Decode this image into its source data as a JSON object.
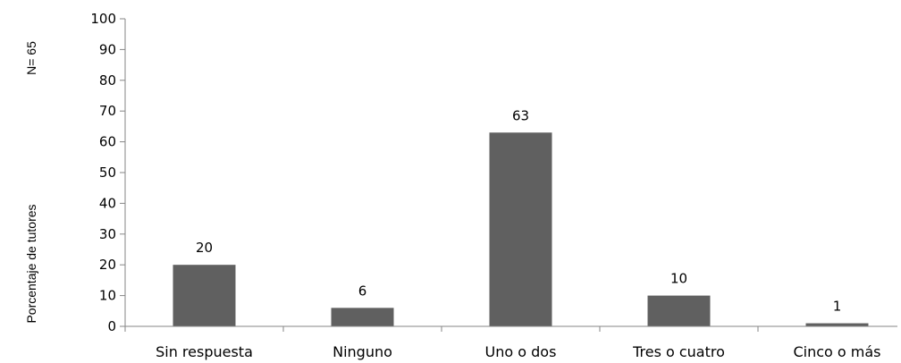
{
  "chart_data": {
    "type": "bar",
    "categories": [
      "Sin respuesta",
      "Ninguno",
      "Uno o dos",
      "Tres o cuatro",
      "Cinco o más"
    ],
    "values": [
      20,
      6,
      63,
      10,
      1
    ],
    "data_labels": [
      "20",
      "6",
      "63",
      "10",
      "1"
    ],
    "ylabel": "Porcentaje de tutores",
    "annotation": "N= 65",
    "ylim": [
      0,
      100
    ],
    "yticks": [
      "0",
      "10",
      "20",
      "30",
      "40",
      "50",
      "60",
      "70",
      "80",
      "90",
      "100"
    ],
    "grid": false,
    "legend": "none",
    "colors": {
      "bar": "#606060",
      "axis": "#868686",
      "text": "#000000"
    }
  }
}
